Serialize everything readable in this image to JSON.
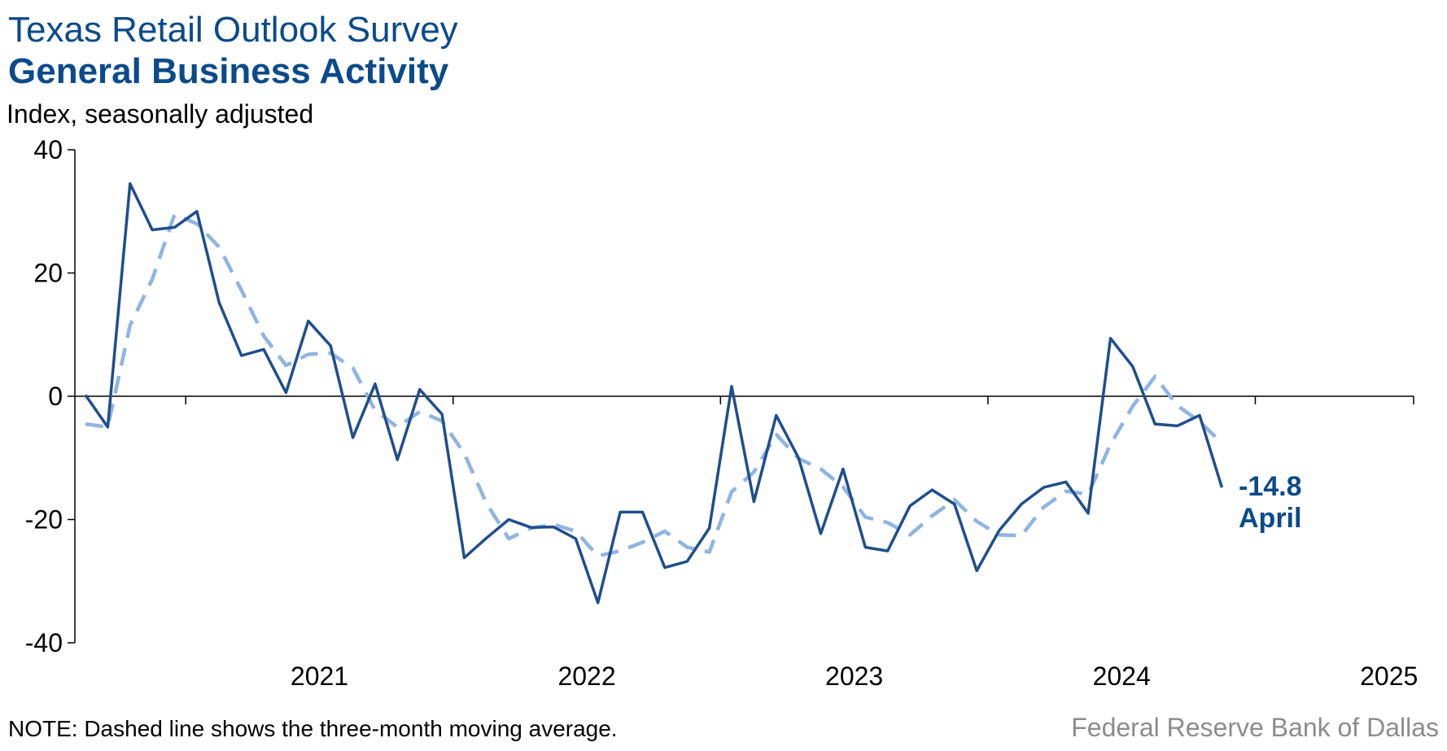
{
  "header": {
    "title": "Texas Retail Outlook Survey",
    "subtitle": "General Business Activity",
    "unit_label": "Index, seasonally adjusted"
  },
  "footer": {
    "note": "NOTE: Dashed line shows the three-month moving average.",
    "source": "Federal Reserve Bank of Dallas"
  },
  "annotation": {
    "value": "-14.8",
    "month": "April"
  },
  "colors": {
    "series": "#1f4e8c",
    "moving_average": "#8fb4e3",
    "title": "#0b4a8b"
  },
  "chart_data": {
    "type": "line",
    "ylim": [
      -40,
      40
    ],
    "yticks": [
      "40",
      "20",
      "0",
      "-20",
      "-40"
    ],
    "ytick_values": [
      40,
      20,
      0,
      -20,
      -40
    ],
    "xticks": [
      "2021",
      "2022",
      "2023",
      "2024",
      "2025"
    ],
    "grid": false,
    "x_start": "2020-08",
    "x_end": "2025-04",
    "series": [
      {
        "style": "solid",
        "values": [
          0.2,
          -5.0,
          34.5,
          27.0,
          27.4,
          30.0,
          15.2,
          6.6,
          7.6,
          0.6,
          12.2,
          8.2,
          -6.7,
          2.0,
          -10.3,
          1.1,
          -2.9,
          -26.2,
          -23.0,
          -20.0,
          -21.3,
          -21.2,
          -23.1,
          -33.5,
          -18.8,
          -18.8,
          -27.8,
          -26.8,
          -21.4,
          1.6,
          -17.1,
          -3.1,
          -10.0,
          -22.3,
          -11.8,
          -24.5,
          -25.1,
          -17.8,
          -15.2,
          -17.5,
          -28.3,
          -21.8,
          -17.5,
          -14.8,
          -13.9,
          -19.0,
          9.4,
          4.8,
          -4.5,
          -4.8,
          -3.1,
          -14.8
        ]
      },
      {
        "style": "dashed",
        "values": [
          -4.5,
          -5.0,
          11.5,
          19.0,
          29.5,
          28.0,
          24.2,
          17.2,
          9.8,
          5.0,
          6.8,
          7.0,
          4.6,
          -2.3,
          -5.0,
          -2.5,
          -4.0,
          -9.3,
          -17.4,
          -23.1,
          -21.4,
          -20.8,
          -21.9,
          -25.9,
          -25.1,
          -23.7,
          -21.9,
          -24.5,
          -25.3,
          -15.5,
          -12.3,
          -6.2,
          -10.1,
          -11.8,
          -14.7,
          -19.6,
          -20.5,
          -22.5,
          -19.4,
          -16.8,
          -20.3,
          -22.5,
          -22.6,
          -18.0,
          -15.4,
          -15.9,
          -7.8,
          -1.6,
          3.2,
          -1.5,
          -4.1,
          -7.6
        ]
      }
    ]
  }
}
